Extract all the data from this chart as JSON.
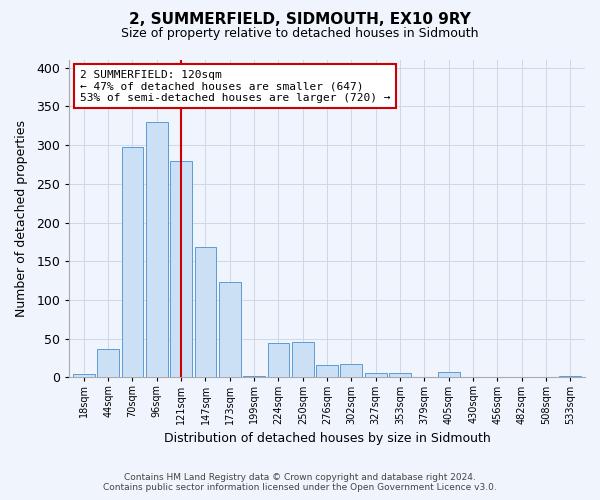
{
  "title": "2, SUMMERFIELD, SIDMOUTH, EX10 9RY",
  "subtitle": "Size of property relative to detached houses in Sidmouth",
  "xlabel": "Distribution of detached houses by size in Sidmouth",
  "ylabel": "Number of detached properties",
  "bar_color": "#cce0f5",
  "bar_edge_color": "#5b9bd5",
  "bin_labels": [
    "18sqm",
    "44sqm",
    "70sqm",
    "96sqm",
    "121sqm",
    "147sqm",
    "173sqm",
    "199sqm",
    "224sqm",
    "250sqm",
    "276sqm",
    "302sqm",
    "327sqm",
    "353sqm",
    "379sqm",
    "405sqm",
    "430sqm",
    "456sqm",
    "482sqm",
    "508sqm",
    "533sqm"
  ],
  "bar_heights": [
    4,
    37,
    297,
    330,
    279,
    169,
    123,
    2,
    44,
    46,
    16,
    17,
    5,
    6,
    0,
    7,
    0,
    0,
    1,
    0,
    2
  ],
  "ylim": [
    0,
    410
  ],
  "yticks": [
    0,
    50,
    100,
    150,
    200,
    250,
    300,
    350,
    400
  ],
  "vline_bin_index": 4,
  "marker_label_line1": "2 SUMMERFIELD: 120sqm",
  "marker_label_line2": "← 47% of detached houses are smaller (647)",
  "marker_label_line3": "53% of semi-detached houses are larger (720) →",
  "vline_color": "#cc0000",
  "annotation_box_edge": "#cc0000",
  "grid_color": "#d0d8e8",
  "background_color": "#f0f4fc",
  "footer_line1": "Contains HM Land Registry data © Crown copyright and database right 2024.",
  "footer_line2": "Contains public sector information licensed under the Open Government Licence v3.0."
}
